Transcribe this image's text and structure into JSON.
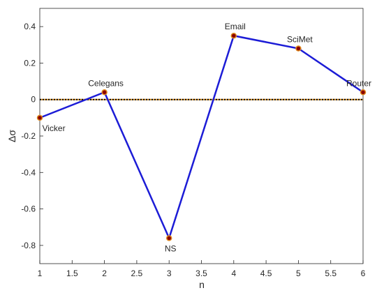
{
  "chart_data": {
    "type": "line",
    "x_label": "n",
    "y_label": "Δσ",
    "x": [
      1,
      2,
      3,
      4,
      5,
      6
    ],
    "point_labels": [
      "Vicker",
      "Celegans",
      "NS",
      "Email",
      "SciMet",
      "Router"
    ],
    "series": [
      {
        "color": "#1c1cd6",
        "marker_color": "#8b0000",
        "marker_edge": "#e08a1e",
        "values": [
          -0.1,
          0.04,
          -0.76,
          0.35,
          0.28,
          0.04
        ]
      }
    ],
    "reference_line": 0,
    "xlim": [
      1,
      6
    ],
    "xticks": [
      1,
      1.5,
      2,
      2.5,
      3,
      3.5,
      4,
      4.5,
      5,
      5.5,
      6
    ],
    "ylim": [
      -0.9,
      0.5
    ],
    "yticks": [
      -0.8,
      -0.6,
      -0.4,
      -0.2,
      0,
      0.2,
      0.4
    ]
  }
}
